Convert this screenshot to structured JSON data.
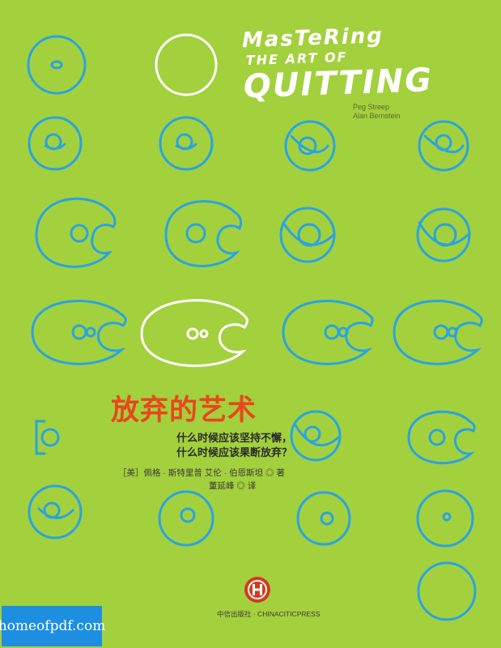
{
  "cover": {
    "title_en": {
      "line1": "MasTeRing",
      "line2": "THE ART OF",
      "line3": "QUITTING"
    },
    "authors_en": [
      "Peg Streep",
      "Alan Bernstein"
    ],
    "title_cn": "放弃的艺术",
    "subtitle_cn": [
      "什么时候应该坚持不懈，",
      "什么时候应该果断放弃？"
    ],
    "credits_authors": "［美］佩格 · 斯特里普  艾伦 · 伯恩斯坦 ◎ 著",
    "credits_translator": "董延峰 ◎ 译",
    "publisher": "中信出版社 · CHINACITICPRESS",
    "watermark": "homeofpdf.com",
    "colors": {
      "background": "#a3d03d",
      "circle": "#2aa4e0",
      "highlight": "#ffffff",
      "title_cn": "#e8471d",
      "watermark": "#1e8fe0"
    }
  }
}
